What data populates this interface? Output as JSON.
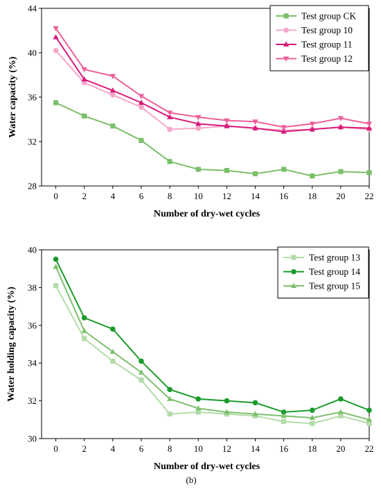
{
  "chart_data": [
    {
      "type": "line",
      "xlabel": "Number of dry-wet cycles",
      "ylabel": "Water capacity (%)",
      "x": [
        0,
        2,
        4,
        6,
        8,
        10,
        12,
        14,
        16,
        18,
        20,
        22
      ],
      "xlim": [
        -1,
        22
      ],
      "ylim": [
        28,
        44
      ],
      "xticks": [
        0,
        2,
        4,
        6,
        8,
        10,
        12,
        14,
        16,
        18,
        20,
        22
      ],
      "yticks": [
        28,
        32,
        36,
        40,
        44
      ],
      "legend_position": "top-right",
      "grid": false,
      "series": [
        {
          "name": "Test group CK",
          "color": "#7bbf6a",
          "marker": "square",
          "values": [
            35.5,
            34.3,
            33.4,
            32.1,
            30.2,
            29.5,
            29.4,
            29.1,
            29.5,
            28.9,
            29.3,
            29.2
          ]
        },
        {
          "name": "Test group 10",
          "color": "#f7a6c9",
          "marker": "circle",
          "values": [
            40.2,
            37.3,
            36.2,
            35.1,
            33.1,
            33.2,
            33.4,
            33.2,
            33.0,
            33.1,
            33.3,
            33.1
          ]
        },
        {
          "name": "Test group 11",
          "color": "#d81b7a",
          "marker": "triangle-up",
          "values": [
            41.4,
            37.6,
            36.6,
            35.5,
            34.2,
            33.6,
            33.4,
            33.2,
            32.9,
            33.1,
            33.3,
            33.2
          ]
        },
        {
          "name": "Test group 12",
          "color": "#ee5f99",
          "marker": "triangle-down",
          "values": [
            42.2,
            38.5,
            37.9,
            36.1,
            34.6,
            34.2,
            33.9,
            33.8,
            33.3,
            33.6,
            34.1,
            33.6
          ]
        }
      ]
    },
    {
      "type": "line",
      "xlabel": "Number of dry-wet cycles",
      "ylabel": "Water holding capacity (%)",
      "x": [
        0,
        2,
        4,
        6,
        8,
        10,
        12,
        14,
        16,
        18,
        20,
        22
      ],
      "xlim": [
        -1,
        22
      ],
      "ylim": [
        30,
        40
      ],
      "xticks": [
        0,
        2,
        4,
        6,
        8,
        10,
        12,
        14,
        16,
        18,
        20,
        22
      ],
      "yticks": [
        30,
        32,
        34,
        36,
        38,
        40
      ],
      "legend_position": "top-right",
      "grid": false,
      "caption": "(b)",
      "series": [
        {
          "name": "Test group 13",
          "color": "#b3dba8",
          "marker": "square",
          "values": [
            38.1,
            35.3,
            34.1,
            33.1,
            31.3,
            31.4,
            31.3,
            31.2,
            30.9,
            30.8,
            31.2,
            30.8
          ]
        },
        {
          "name": "Test group 14",
          "color": "#1a9a2a",
          "marker": "circle",
          "values": [
            39.5,
            36.4,
            35.8,
            34.1,
            32.6,
            32.1,
            32.0,
            31.9,
            31.4,
            31.5,
            32.1,
            31.5
          ]
        },
        {
          "name": "Test group 15",
          "color": "#7ec06e",
          "marker": "triangle-up",
          "values": [
            39.1,
            35.7,
            34.6,
            33.5,
            32.1,
            31.6,
            31.4,
            31.3,
            31.2,
            31.1,
            31.4,
            31.0
          ]
        }
      ]
    }
  ]
}
